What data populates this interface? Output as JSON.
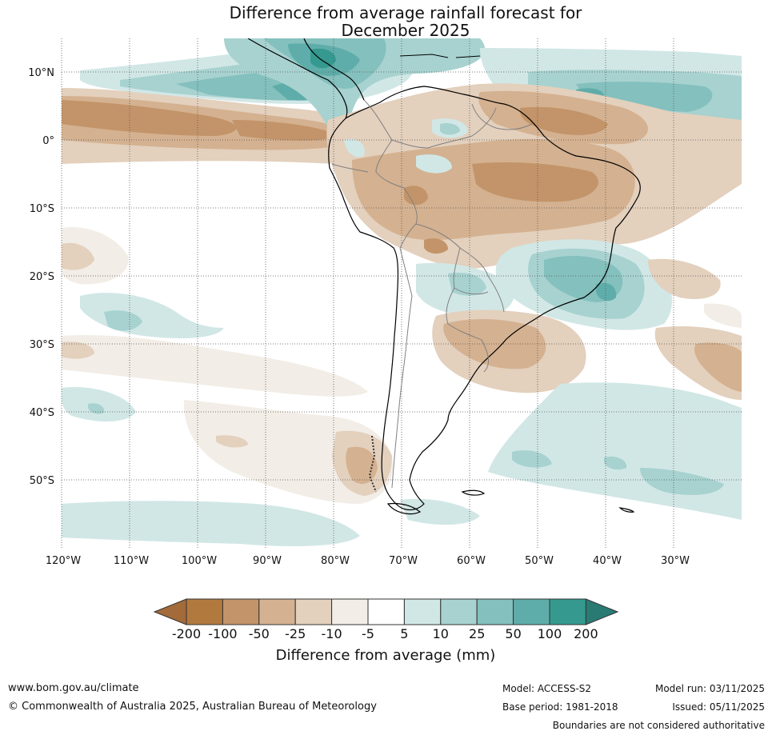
{
  "title": {
    "line1": "Difference from average rainfall forecast for",
    "line2": "December 2025"
  },
  "map": {
    "lat_labels": [
      "10°N",
      "0°",
      "10°S",
      "20°S",
      "30°S",
      "40°S",
      "50°S"
    ],
    "lon_labels": [
      "120°W",
      "110°W",
      "100°W",
      "90°W",
      "80°W",
      "70°W",
      "60°W",
      "50°W",
      "40°W",
      "30°W"
    ]
  },
  "legend": {
    "labels": [
      "-200",
      "-100",
      "-50",
      "-25",
      "-10",
      "-5",
      "5",
      "10",
      "25",
      "50",
      "100",
      "200"
    ],
    "colors": [
      "#a36a3a",
      "#b2793f",
      "#c39469",
      "#d4b190",
      "#e3d0bd",
      "#f2ede6",
      "#ffffff",
      "#d1e7e6",
      "#a7d2d0",
      "#84c0bd",
      "#5fadaa",
      "#35998f",
      "#2a7a74"
    ],
    "title": "Difference from average (mm)"
  },
  "footer": {
    "website": "www.bom.gov.au/climate",
    "copyright": "© Commonwealth of Australia 2025, Australian Bureau of Meteorology",
    "model": "Model: ACCESS-S2",
    "base_period": "Base period: 1981-2018",
    "model_run": "Model run: 03/11/2025",
    "issued": "Issued: 05/11/2025",
    "disclaimer": "Boundaries are not considered authoritative"
  }
}
